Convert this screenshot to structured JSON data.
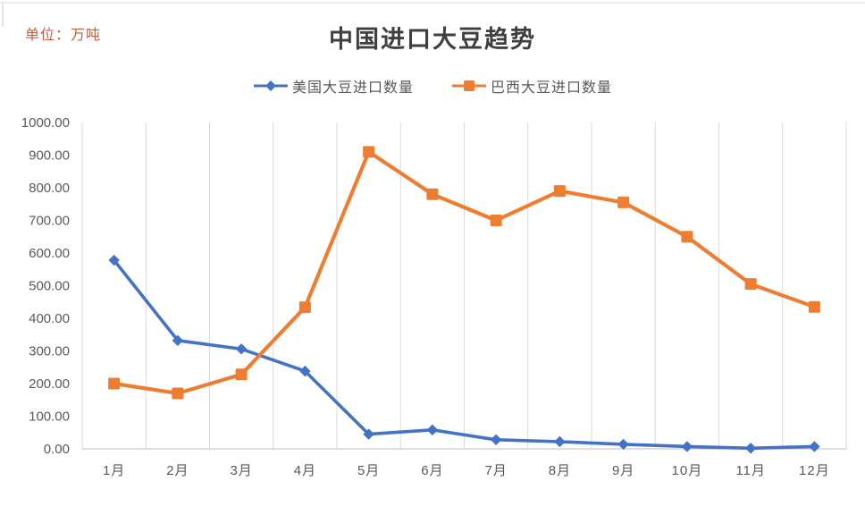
{
  "header": {
    "unit_label": "单位：万吨",
    "title": "中国进口大豆趋势"
  },
  "legend": {
    "items": [
      {
        "label": "美国大豆进口数量",
        "color": "#4472C4",
        "marker": "diamond"
      },
      {
        "label": "巴西大豆进口数量",
        "color": "#ED7D31",
        "marker": "square"
      }
    ]
  },
  "chart_data": {
    "type": "line",
    "title": "中国进口大豆趋势",
    "unit": "万吨",
    "categories": [
      "1月",
      "2月",
      "3月",
      "4月",
      "5月",
      "6月",
      "7月",
      "8月",
      "9月",
      "10月",
      "11月",
      "12月"
    ],
    "series": [
      {
        "name": "美国大豆进口数量",
        "color": "#4472C4",
        "marker": "diamond",
        "values": [
          578,
          332,
          306,
          238,
          45,
          58,
          28,
          22,
          14,
          7,
          2,
          7
        ]
      },
      {
        "name": "巴西大豆进口数量",
        "color": "#ED7D31",
        "marker": "square",
        "values": [
          200,
          170,
          228,
          434,
          910,
          780,
          700,
          790,
          755,
          650,
          505,
          435
        ]
      }
    ],
    "ylim": [
      0,
      1000
    ],
    "ytick_step": 100,
    "ytick_labels": [
      "0.00",
      "100.00",
      "200.00",
      "300.00",
      "400.00",
      "500.00",
      "600.00",
      "700.00",
      "800.00",
      "900.00",
      "1000.00"
    ],
    "grid": "vertical-only",
    "legend_position": "top"
  },
  "colors": {
    "grid": "#d9d9d9",
    "axis": "#c9c9c9",
    "axis_text": "#595959",
    "title_text": "#3f3f3f",
    "unit_text": "#bb6047"
  }
}
